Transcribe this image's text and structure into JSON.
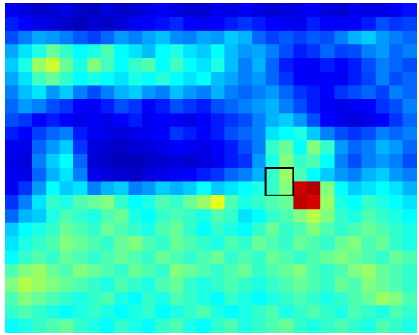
{
  "chart_data": {
    "type": "heatmap",
    "title": "",
    "xlabel": "",
    "ylabel": "",
    "rows": 24,
    "cols": 30,
    "grid": false,
    "colormap": [
      "#00008f",
      "#0000ff",
      "#00ffff",
      "#ffff00",
      "#ff0000",
      "#800000"
    ],
    "value_range": [
      0,
      1
    ],
    "values": [
      [
        0.18,
        0.14,
        0.1,
        0.12,
        0.15,
        0.1,
        0.09,
        0.14,
        0.1,
        0.12,
        0.15,
        0.18,
        0.15,
        0.11,
        0.12,
        0.17,
        0.15,
        0.19,
        0.15,
        0.12,
        0.14,
        0.16,
        0.19,
        0.14,
        0.12,
        0.17,
        0.15,
        0.15,
        0.19,
        0.21
      ],
      [
        0.22,
        0.2,
        0.16,
        0.14,
        0.11,
        0.08,
        0.12,
        0.1,
        0.14,
        0.18,
        0.2,
        0.21,
        0.23,
        0.2,
        0.18,
        0.2,
        0.22,
        0.24,
        0.22,
        0.2,
        0.18,
        0.17,
        0.22,
        0.2,
        0.18,
        0.2,
        0.22,
        0.26,
        0.24,
        0.25
      ],
      [
        0.26,
        0.3,
        0.33,
        0.32,
        0.3,
        0.27,
        0.25,
        0.28,
        0.32,
        0.3,
        0.33,
        0.35,
        0.31,
        0.3,
        0.33,
        0.32,
        0.36,
        0.34,
        0.28,
        0.25,
        0.27,
        0.25,
        0.27,
        0.26,
        0.3,
        0.34,
        0.36,
        0.32,
        0.3,
        0.28
      ],
      [
        0.33,
        0.38,
        0.42,
        0.48,
        0.44,
        0.4,
        0.42,
        0.46,
        0.4,
        0.38,
        0.35,
        0.4,
        0.42,
        0.38,
        0.36,
        0.4,
        0.35,
        0.32,
        0.33,
        0.3,
        0.26,
        0.22,
        0.24,
        0.28,
        0.25,
        0.26,
        0.3,
        0.32,
        0.28,
        0.3
      ],
      [
        0.36,
        0.42,
        0.52,
        0.56,
        0.48,
        0.42,
        0.5,
        0.45,
        0.4,
        0.44,
        0.46,
        0.4,
        0.45,
        0.4,
        0.38,
        0.42,
        0.35,
        0.3,
        0.34,
        0.28,
        0.22,
        0.2,
        0.18,
        0.22,
        0.2,
        0.22,
        0.26,
        0.3,
        0.28,
        0.26
      ],
      [
        0.33,
        0.38,
        0.45,
        0.48,
        0.44,
        0.4,
        0.42,
        0.4,
        0.38,
        0.42,
        0.4,
        0.43,
        0.4,
        0.38,
        0.4,
        0.35,
        0.33,
        0.3,
        0.32,
        0.28,
        0.24,
        0.2,
        0.18,
        0.2,
        0.18,
        0.22,
        0.25,
        0.3,
        0.26,
        0.28
      ],
      [
        0.3,
        0.35,
        0.38,
        0.32,
        0.36,
        0.3,
        0.26,
        0.3,
        0.34,
        0.36,
        0.32,
        0.3,
        0.35,
        0.32,
        0.3,
        0.34,
        0.3,
        0.28,
        0.3,
        0.32,
        0.28,
        0.24,
        0.22,
        0.2,
        0.24,
        0.26,
        0.28,
        0.25,
        0.3,
        0.28
      ],
      [
        0.28,
        0.32,
        0.3,
        0.26,
        0.24,
        0.2,
        0.18,
        0.22,
        0.26,
        0.24,
        0.2,
        0.22,
        0.26,
        0.24,
        0.22,
        0.26,
        0.28,
        0.3,
        0.32,
        0.34,
        0.3,
        0.26,
        0.22,
        0.18,
        0.16,
        0.18,
        0.2,
        0.24,
        0.26,
        0.3
      ],
      [
        0.26,
        0.24,
        0.2,
        0.22,
        0.2,
        0.16,
        0.18,
        0.16,
        0.2,
        0.22,
        0.18,
        0.2,
        0.18,
        0.16,
        0.2,
        0.22,
        0.24,
        0.26,
        0.3,
        0.34,
        0.36,
        0.32,
        0.26,
        0.2,
        0.16,
        0.14,
        0.16,
        0.2,
        0.24,
        0.28
      ],
      [
        0.22,
        0.2,
        0.25,
        0.28,
        0.3,
        0.22,
        0.18,
        0.16,
        0.14,
        0.16,
        0.18,
        0.2,
        0.24,
        0.22,
        0.2,
        0.22,
        0.26,
        0.28,
        0.3,
        0.38,
        0.4,
        0.42,
        0.36,
        0.3,
        0.26,
        0.24,
        0.26,
        0.3,
        0.28,
        0.3
      ],
      [
        0.18,
        0.16,
        0.28,
        0.32,
        0.36,
        0.24,
        0.14,
        0.12,
        0.1,
        0.12,
        0.14,
        0.16,
        0.2,
        0.18,
        0.16,
        0.2,
        0.22,
        0.26,
        0.3,
        0.44,
        0.48,
        0.4,
        0.5,
        0.44,
        0.32,
        0.28,
        0.3,
        0.34,
        0.32,
        0.28
      ],
      [
        0.16,
        0.14,
        0.3,
        0.36,
        0.4,
        0.28,
        0.12,
        0.1,
        0.08,
        0.08,
        0.1,
        0.12,
        0.14,
        0.12,
        0.14,
        0.18,
        0.22,
        0.24,
        0.32,
        0.42,
        0.5,
        0.44,
        0.46,
        0.4,
        0.3,
        0.26,
        0.3,
        0.32,
        0.3,
        0.26
      ],
      [
        0.18,
        0.16,
        0.28,
        0.34,
        0.38,
        0.3,
        0.16,
        0.14,
        0.12,
        0.1,
        0.14,
        0.16,
        0.18,
        0.2,
        0.22,
        0.24,
        0.28,
        0.3,
        0.34,
        0.44,
        0.52,
        0.46,
        0.4,
        0.36,
        0.32,
        0.3,
        0.34,
        0.36,
        0.32,
        0.3
      ],
      [
        0.2,
        0.24,
        0.32,
        0.4,
        0.36,
        0.38,
        0.3,
        0.34,
        0.36,
        0.3,
        0.32,
        0.36,
        0.34,
        0.36,
        0.4,
        0.36,
        0.38,
        0.4,
        0.42,
        0.44,
        0.5,
        0.88,
        0.92,
        0.5,
        0.4,
        0.36,
        0.38,
        0.4,
        0.38,
        0.34
      ],
      [
        0.24,
        0.3,
        0.38,
        0.44,
        0.42,
        0.46,
        0.48,
        0.5,
        0.44,
        0.4,
        0.42,
        0.46,
        0.44,
        0.48,
        0.52,
        0.58,
        0.46,
        0.42,
        0.44,
        0.46,
        0.48,
        0.9,
        0.86,
        0.52,
        0.42,
        0.4,
        0.44,
        0.42,
        0.4,
        0.38
      ],
      [
        0.28,
        0.34,
        0.36,
        0.42,
        0.46,
        0.44,
        0.42,
        0.46,
        0.48,
        0.42,
        0.4,
        0.44,
        0.46,
        0.44,
        0.42,
        0.46,
        0.44,
        0.38,
        0.4,
        0.44,
        0.46,
        0.5,
        0.54,
        0.5,
        0.44,
        0.42,
        0.46,
        0.44,
        0.42,
        0.4
      ],
      [
        0.36,
        0.4,
        0.42,
        0.44,
        0.48,
        0.46,
        0.44,
        0.48,
        0.46,
        0.44,
        0.42,
        0.46,
        0.48,
        0.44,
        0.4,
        0.44,
        0.42,
        0.4,
        0.44,
        0.48,
        0.44,
        0.46,
        0.5,
        0.46,
        0.44,
        0.46,
        0.48,
        0.46,
        0.44,
        0.42
      ],
      [
        0.38,
        0.42,
        0.44,
        0.46,
        0.5,
        0.48,
        0.46,
        0.44,
        0.48,
        0.5,
        0.46,
        0.44,
        0.48,
        0.46,
        0.44,
        0.42,
        0.46,
        0.44,
        0.48,
        0.46,
        0.44,
        0.48,
        0.46,
        0.44,
        0.48,
        0.5,
        0.46,
        0.48,
        0.44,
        0.42
      ],
      [
        0.4,
        0.44,
        0.46,
        0.44,
        0.48,
        0.46,
        0.44,
        0.46,
        0.48,
        0.46,
        0.44,
        0.48,
        0.46,
        0.44,
        0.46,
        0.48,
        0.44,
        0.46,
        0.44,
        0.48,
        0.46,
        0.44,
        0.46,
        0.48,
        0.5,
        0.48,
        0.46,
        0.44,
        0.48,
        0.46
      ],
      [
        0.46,
        0.5,
        0.52,
        0.48,
        0.46,
        0.5,
        0.48,
        0.46,
        0.44,
        0.48,
        0.46,
        0.44,
        0.5,
        0.48,
        0.46,
        0.44,
        0.46,
        0.48,
        0.44,
        0.46,
        0.48,
        0.5,
        0.46,
        0.44,
        0.46,
        0.5,
        0.52,
        0.48,
        0.46,
        0.44
      ],
      [
        0.5,
        0.54,
        0.52,
        0.5,
        0.48,
        0.46,
        0.44,
        0.42,
        0.46,
        0.44,
        0.42,
        0.46,
        0.48,
        0.44,
        0.42,
        0.44,
        0.46,
        0.44,
        0.42,
        0.44,
        0.46,
        0.48,
        0.46,
        0.44,
        0.48,
        0.46,
        0.5,
        0.48,
        0.46,
        0.44
      ],
      [
        0.46,
        0.5,
        0.48,
        0.46,
        0.44,
        0.42,
        0.44,
        0.46,
        0.42,
        0.4,
        0.44,
        0.42,
        0.46,
        0.44,
        0.42,
        0.4,
        0.44,
        0.42,
        0.4,
        0.42,
        0.44,
        0.46,
        0.44,
        0.42,
        0.44,
        0.46,
        0.48,
        0.52,
        0.5,
        0.46
      ],
      [
        0.44,
        0.46,
        0.44,
        0.42,
        0.4,
        0.42,
        0.44,
        0.42,
        0.4,
        0.42,
        0.44,
        0.4,
        0.42,
        0.44,
        0.46,
        0.42,
        0.4,
        0.42,
        0.44,
        0.46,
        0.42,
        0.44,
        0.46,
        0.44,
        0.42,
        0.46,
        0.44,
        0.42,
        0.46,
        0.44
      ],
      [
        0.4,
        0.42,
        0.44,
        0.46,
        0.48,
        0.44,
        0.42,
        0.4,
        0.44,
        0.42,
        0.4,
        0.44,
        0.46,
        0.42,
        0.4,
        0.44,
        0.46,
        0.42,
        0.44,
        0.46,
        0.48,
        0.44,
        0.42,
        0.44,
        0.46,
        0.44,
        0.42,
        0.46,
        0.44,
        0.42
      ]
    ],
    "highlight": {
      "row_start": 12,
      "col_start": 19,
      "row_span": 2,
      "col_span": 2
    }
  }
}
